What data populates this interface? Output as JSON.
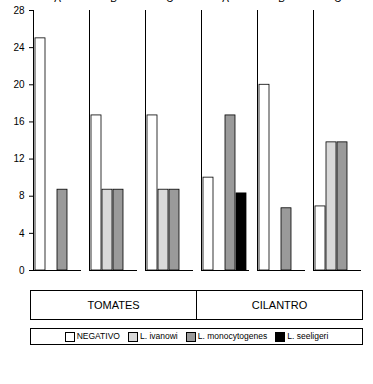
{
  "chart_data": {
    "type": "bar",
    "categories": [
      "A",
      "B",
      "C",
      "A",
      "B",
      "C"
    ],
    "groups": [
      "TOMATES",
      "TOMATES",
      "TOMATES",
      "CILANTRO",
      "CILANTRO",
      "CILANTRO"
    ],
    "series": [
      {
        "name": "NEGATIVO",
        "color": "#ffffff",
        "values": [
          25,
          16.7,
          16.7,
          10,
          20,
          6.9
        ]
      },
      {
        "name": "L. ivanowi",
        "color": "#d9d9d9",
        "values": [
          0,
          8.7,
          8.7,
          0,
          0,
          13.8
        ]
      },
      {
        "name": "L. monocytogenes",
        "color": "#9a9a9a",
        "values": [
          8.7,
          8.7,
          8.7,
          16.7,
          6.7,
          13.8
        ]
      },
      {
        "name": "L. seeligeri",
        "color": "#000000",
        "values": [
          0,
          0,
          0,
          8.3,
          0,
          0
        ]
      }
    ],
    "ylim": [
      0,
      28
    ],
    "yticks": [
      0,
      4,
      8,
      12,
      16,
      20,
      24,
      28
    ],
    "legend": "bottom"
  }
}
